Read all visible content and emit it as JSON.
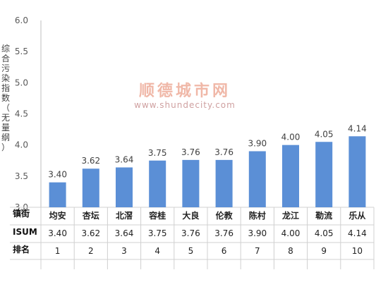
{
  "chart_data": {
    "type": "bar",
    "ylabel": "综合污染指数（无量纲）",
    "ylim": [
      3.0,
      6.0
    ],
    "yticks": [
      "3.0",
      "3.5",
      "4.0",
      "4.5",
      "5.0",
      "5.5",
      "6.0"
    ],
    "categories": [
      "均安",
      "杏坛",
      "北滘",
      "容桂",
      "大良",
      "伦教",
      "陈村",
      "龙江",
      "勒流",
      "乐从"
    ],
    "values": [
      3.4,
      3.62,
      3.64,
      3.75,
      3.76,
      3.76,
      3.9,
      4.0,
      4.05,
      4.14
    ],
    "value_labels": [
      "3.40",
      "3.62",
      "3.64",
      "3.75",
      "3.76",
      "3.76",
      "3.90",
      "4.00",
      "4.05",
      "4.14"
    ],
    "bar_color": "#5b8fd6",
    "grid": false
  },
  "table": {
    "row_headers": [
      "镇街",
      "ISUM",
      "排名"
    ],
    "isum": [
      "3.40",
      "3.62",
      "3.64",
      "3.75",
      "3.76",
      "3.76",
      "3.90",
      "4.00",
      "4.05",
      "4.14"
    ],
    "rank": [
      "1",
      "2",
      "3",
      "4",
      "5",
      "6",
      "7",
      "8",
      "9",
      "10"
    ]
  },
  "watermark": {
    "title": "顺德城市网",
    "url": "www.shundecity.com"
  }
}
